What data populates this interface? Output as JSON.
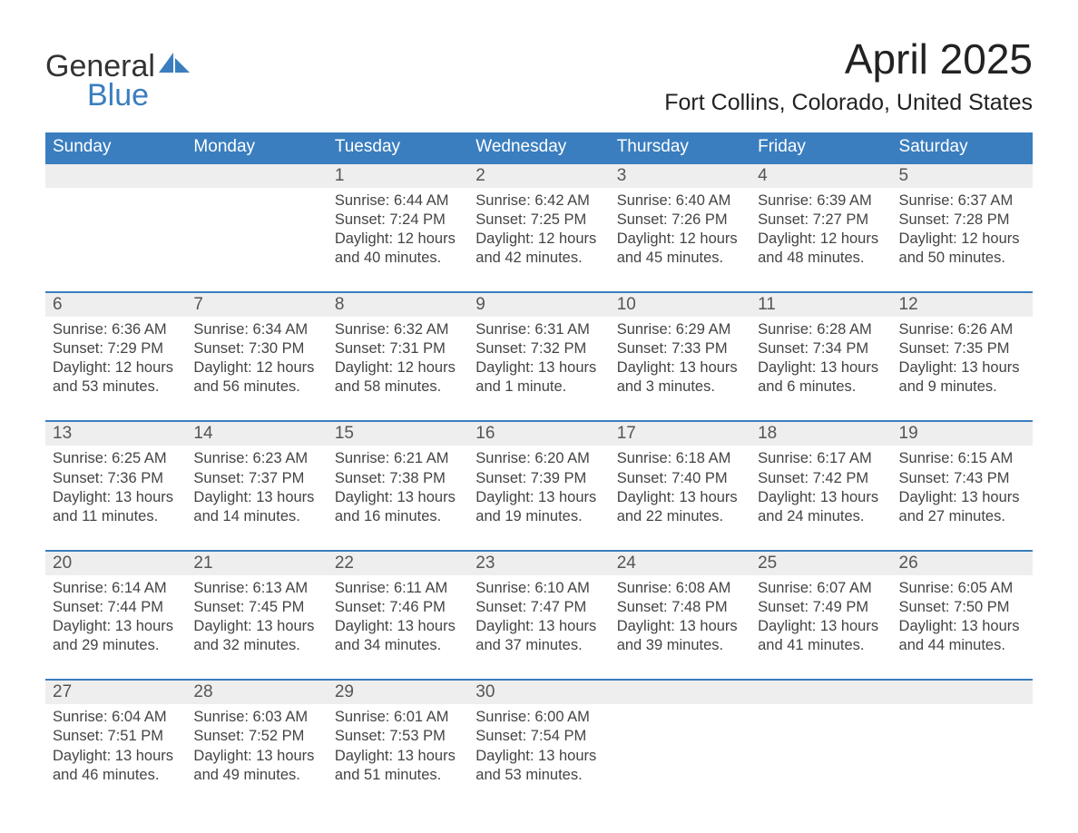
{
  "logo": {
    "line1": "General",
    "line2": "Blue",
    "accent_color": "#3a7ebf"
  },
  "header": {
    "month_title": "April 2025",
    "location": "Fort Collins, Colorado, United States"
  },
  "calendar": {
    "header_bg": "#3a7ebf",
    "header_text_color": "#ffffff",
    "rule_color": "#3a7ebf",
    "daynum_bg": "#eeeeee",
    "text_color": "#444444",
    "days_of_week": [
      "Sunday",
      "Monday",
      "Tuesday",
      "Wednesday",
      "Thursday",
      "Friday",
      "Saturday"
    ],
    "weeks": [
      [
        {
          "n": "",
          "sunrise": "",
          "sunset": "",
          "daylight1": "",
          "daylight2": "",
          "empty": true
        },
        {
          "n": "",
          "sunrise": "",
          "sunset": "",
          "daylight1": "",
          "daylight2": "",
          "empty": true
        },
        {
          "n": "1",
          "sunrise": "Sunrise: 6:44 AM",
          "sunset": "Sunset: 7:24 PM",
          "daylight1": "Daylight: 12 hours",
          "daylight2": "and 40 minutes."
        },
        {
          "n": "2",
          "sunrise": "Sunrise: 6:42 AM",
          "sunset": "Sunset: 7:25 PM",
          "daylight1": "Daylight: 12 hours",
          "daylight2": "and 42 minutes."
        },
        {
          "n": "3",
          "sunrise": "Sunrise: 6:40 AM",
          "sunset": "Sunset: 7:26 PM",
          "daylight1": "Daylight: 12 hours",
          "daylight2": "and 45 minutes."
        },
        {
          "n": "4",
          "sunrise": "Sunrise: 6:39 AM",
          "sunset": "Sunset: 7:27 PM",
          "daylight1": "Daylight: 12 hours",
          "daylight2": "and 48 minutes."
        },
        {
          "n": "5",
          "sunrise": "Sunrise: 6:37 AM",
          "sunset": "Sunset: 7:28 PM",
          "daylight1": "Daylight: 12 hours",
          "daylight2": "and 50 minutes."
        }
      ],
      [
        {
          "n": "6",
          "sunrise": "Sunrise: 6:36 AM",
          "sunset": "Sunset: 7:29 PM",
          "daylight1": "Daylight: 12 hours",
          "daylight2": "and 53 minutes."
        },
        {
          "n": "7",
          "sunrise": "Sunrise: 6:34 AM",
          "sunset": "Sunset: 7:30 PM",
          "daylight1": "Daylight: 12 hours",
          "daylight2": "and 56 minutes."
        },
        {
          "n": "8",
          "sunrise": "Sunrise: 6:32 AM",
          "sunset": "Sunset: 7:31 PM",
          "daylight1": "Daylight: 12 hours",
          "daylight2": "and 58 minutes."
        },
        {
          "n": "9",
          "sunrise": "Sunrise: 6:31 AM",
          "sunset": "Sunset: 7:32 PM",
          "daylight1": "Daylight: 13 hours",
          "daylight2": "and 1 minute."
        },
        {
          "n": "10",
          "sunrise": "Sunrise: 6:29 AM",
          "sunset": "Sunset: 7:33 PM",
          "daylight1": "Daylight: 13 hours",
          "daylight2": "and 3 minutes."
        },
        {
          "n": "11",
          "sunrise": "Sunrise: 6:28 AM",
          "sunset": "Sunset: 7:34 PM",
          "daylight1": "Daylight: 13 hours",
          "daylight2": "and 6 minutes."
        },
        {
          "n": "12",
          "sunrise": "Sunrise: 6:26 AM",
          "sunset": "Sunset: 7:35 PM",
          "daylight1": "Daylight: 13 hours",
          "daylight2": "and 9 minutes."
        }
      ],
      [
        {
          "n": "13",
          "sunrise": "Sunrise: 6:25 AM",
          "sunset": "Sunset: 7:36 PM",
          "daylight1": "Daylight: 13 hours",
          "daylight2": "and 11 minutes."
        },
        {
          "n": "14",
          "sunrise": "Sunrise: 6:23 AM",
          "sunset": "Sunset: 7:37 PM",
          "daylight1": "Daylight: 13 hours",
          "daylight2": "and 14 minutes."
        },
        {
          "n": "15",
          "sunrise": "Sunrise: 6:21 AM",
          "sunset": "Sunset: 7:38 PM",
          "daylight1": "Daylight: 13 hours",
          "daylight2": "and 16 minutes."
        },
        {
          "n": "16",
          "sunrise": "Sunrise: 6:20 AM",
          "sunset": "Sunset: 7:39 PM",
          "daylight1": "Daylight: 13 hours",
          "daylight2": "and 19 minutes."
        },
        {
          "n": "17",
          "sunrise": "Sunrise: 6:18 AM",
          "sunset": "Sunset: 7:40 PM",
          "daylight1": "Daylight: 13 hours",
          "daylight2": "and 22 minutes."
        },
        {
          "n": "18",
          "sunrise": "Sunrise: 6:17 AM",
          "sunset": "Sunset: 7:42 PM",
          "daylight1": "Daylight: 13 hours",
          "daylight2": "and 24 minutes."
        },
        {
          "n": "19",
          "sunrise": "Sunrise: 6:15 AM",
          "sunset": "Sunset: 7:43 PM",
          "daylight1": "Daylight: 13 hours",
          "daylight2": "and 27 minutes."
        }
      ],
      [
        {
          "n": "20",
          "sunrise": "Sunrise: 6:14 AM",
          "sunset": "Sunset: 7:44 PM",
          "daylight1": "Daylight: 13 hours",
          "daylight2": "and 29 minutes."
        },
        {
          "n": "21",
          "sunrise": "Sunrise: 6:13 AM",
          "sunset": "Sunset: 7:45 PM",
          "daylight1": "Daylight: 13 hours",
          "daylight2": "and 32 minutes."
        },
        {
          "n": "22",
          "sunrise": "Sunrise: 6:11 AM",
          "sunset": "Sunset: 7:46 PM",
          "daylight1": "Daylight: 13 hours",
          "daylight2": "and 34 minutes."
        },
        {
          "n": "23",
          "sunrise": "Sunrise: 6:10 AM",
          "sunset": "Sunset: 7:47 PM",
          "daylight1": "Daylight: 13 hours",
          "daylight2": "and 37 minutes."
        },
        {
          "n": "24",
          "sunrise": "Sunrise: 6:08 AM",
          "sunset": "Sunset: 7:48 PM",
          "daylight1": "Daylight: 13 hours",
          "daylight2": "and 39 minutes."
        },
        {
          "n": "25",
          "sunrise": "Sunrise: 6:07 AM",
          "sunset": "Sunset: 7:49 PM",
          "daylight1": "Daylight: 13 hours",
          "daylight2": "and 41 minutes."
        },
        {
          "n": "26",
          "sunrise": "Sunrise: 6:05 AM",
          "sunset": "Sunset: 7:50 PM",
          "daylight1": "Daylight: 13 hours",
          "daylight2": "and 44 minutes."
        }
      ],
      [
        {
          "n": "27",
          "sunrise": "Sunrise: 6:04 AM",
          "sunset": "Sunset: 7:51 PM",
          "daylight1": "Daylight: 13 hours",
          "daylight2": "and 46 minutes."
        },
        {
          "n": "28",
          "sunrise": "Sunrise: 6:03 AM",
          "sunset": "Sunset: 7:52 PM",
          "daylight1": "Daylight: 13 hours",
          "daylight2": "and 49 minutes."
        },
        {
          "n": "29",
          "sunrise": "Sunrise: 6:01 AM",
          "sunset": "Sunset: 7:53 PM",
          "daylight1": "Daylight: 13 hours",
          "daylight2": "and 51 minutes."
        },
        {
          "n": "30",
          "sunrise": "Sunrise: 6:00 AM",
          "sunset": "Sunset: 7:54 PM",
          "daylight1": "Daylight: 13 hours",
          "daylight2": "and 53 minutes."
        },
        {
          "n": "",
          "sunrise": "",
          "sunset": "",
          "daylight1": "",
          "daylight2": "",
          "empty": true
        },
        {
          "n": "",
          "sunrise": "",
          "sunset": "",
          "daylight1": "",
          "daylight2": "",
          "empty": true
        },
        {
          "n": "",
          "sunrise": "",
          "sunset": "",
          "daylight1": "",
          "daylight2": "",
          "empty": true
        }
      ]
    ]
  }
}
